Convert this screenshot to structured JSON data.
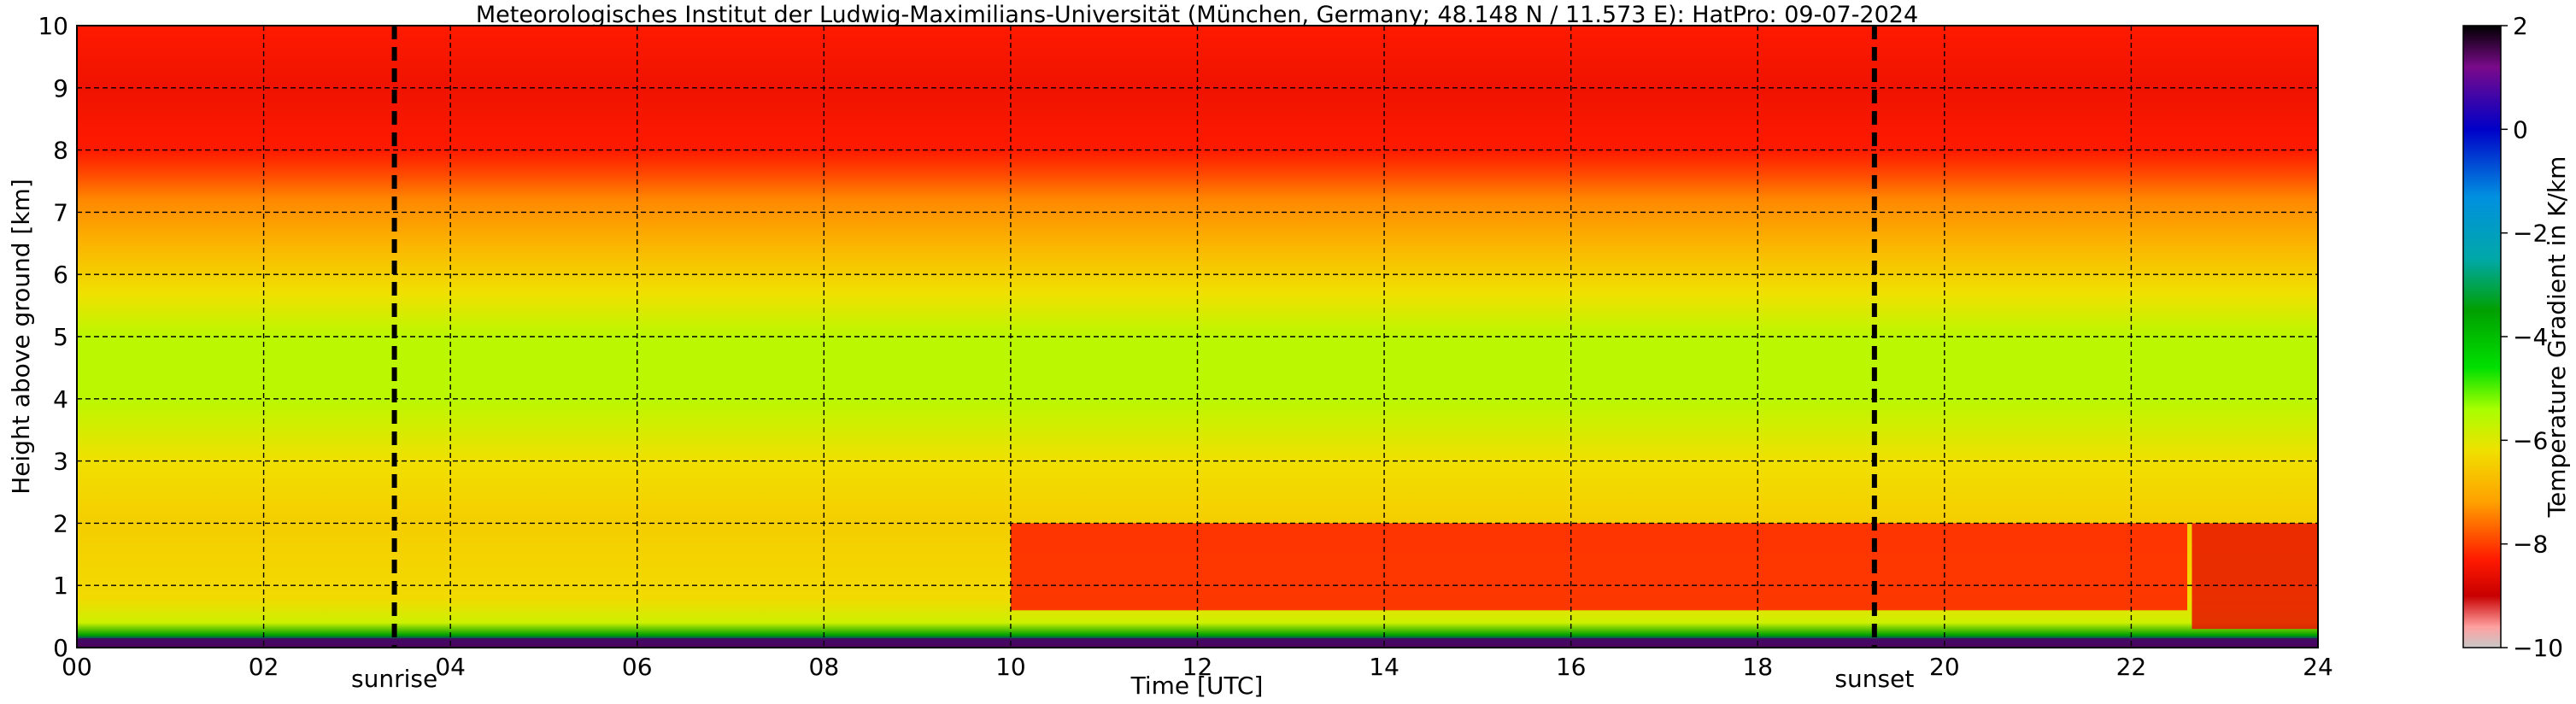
{
  "chart_data": {
    "type": "heatmap",
    "title": "Meteorologisches Institut der Ludwig-Maximilians-Universität (München, Germany; 48.148 N / 11.573 E):    HatPro: 09-07-2024",
    "xlabel": "Time [UTC]",
    "ylabel": "Height above ground [km]",
    "xlim": [
      0,
      24
    ],
    "ylim": [
      0,
      10
    ],
    "x_ticks": [
      "00",
      "02",
      "04",
      "06",
      "08",
      "10",
      "12",
      "14",
      "16",
      "18",
      "20",
      "22",
      "24"
    ],
    "y_ticks": [
      "0",
      "1",
      "2",
      "3",
      "4",
      "5",
      "6",
      "7",
      "8",
      "9",
      "10"
    ],
    "grid": true,
    "colorbar": {
      "label": "Temperature Gradient in K/km",
      "range": [
        -10,
        2
      ],
      "ticks": [
        "2",
        "0",
        "−2",
        "−4",
        "−6",
        "−8",
        "−10"
      ],
      "stops": [
        {
          "value": 2,
          "color": "#000000"
        },
        {
          "value": 1.2,
          "color": "#7a0a8a"
        },
        {
          "value": 0,
          "color": "#0000c8"
        },
        {
          "value": -1.3,
          "color": "#0090e0"
        },
        {
          "value": -2.5,
          "color": "#00a8a8"
        },
        {
          "value": -3.5,
          "color": "#00a000"
        },
        {
          "value": -4.6,
          "color": "#00e000"
        },
        {
          "value": -5.4,
          "color": "#a8ff00"
        },
        {
          "value": -6.2,
          "color": "#f0e000"
        },
        {
          "value": -7.2,
          "color": "#ffa000"
        },
        {
          "value": -8.3,
          "color": "#ff1a00"
        },
        {
          "value": -9,
          "color": "#c80000"
        },
        {
          "value": -9.6,
          "color": "#ffa0a0"
        },
        {
          "value": -10,
          "color": "#c8c8c8"
        }
      ]
    },
    "annotations": [
      {
        "text": "sunrise",
        "x": 3.4
      },
      {
        "text": "sunset",
        "x": 19.25
      }
    ],
    "profile_gradient_K_per_km": [
      {
        "height_km": 0.0,
        "value": 1.5
      },
      {
        "height_km": 0.1,
        "value": 0.2
      },
      {
        "height_km": 0.2,
        "value": -3.5
      },
      {
        "height_km": 0.4,
        "value": -5.8
      },
      {
        "height_km": 0.8,
        "value": -6.3
      },
      {
        "height_km": 2.0,
        "value": -6.5
      },
      {
        "height_km": 3.0,
        "value": -6.2
      },
      {
        "height_km": 4.0,
        "value": -5.6
      },
      {
        "height_km": 5.0,
        "value": -5.6
      },
      {
        "height_km": 5.7,
        "value": -6.2
      },
      {
        "height_km": 6.5,
        "value": -6.9
      },
      {
        "height_km": 7.2,
        "value": -7.4
      },
      {
        "height_km": 7.6,
        "value": -7.9
      },
      {
        "height_km": 8.0,
        "value": -8.3
      },
      {
        "height_km": 9.0,
        "value": -8.5
      },
      {
        "height_km": 10.0,
        "value": -8.3
      }
    ],
    "features": [
      {
        "description": "strongly negative layer",
        "time_range": [
          10,
          22.6
        ],
        "height_range_km": [
          0.6,
          2.0
        ],
        "value": -8.3
      },
      {
        "description": "inversion/isothermal near surface",
        "time_range": [
          0,
          24
        ],
        "height_range_km": [
          0,
          0.15
        ],
        "value": 1.5
      },
      {
        "description": "layer after data gap",
        "time_range": [
          22.65,
          24
        ],
        "height_range_km": [
          0.3,
          2.0
        ],
        "value": -8.6
      }
    ]
  }
}
